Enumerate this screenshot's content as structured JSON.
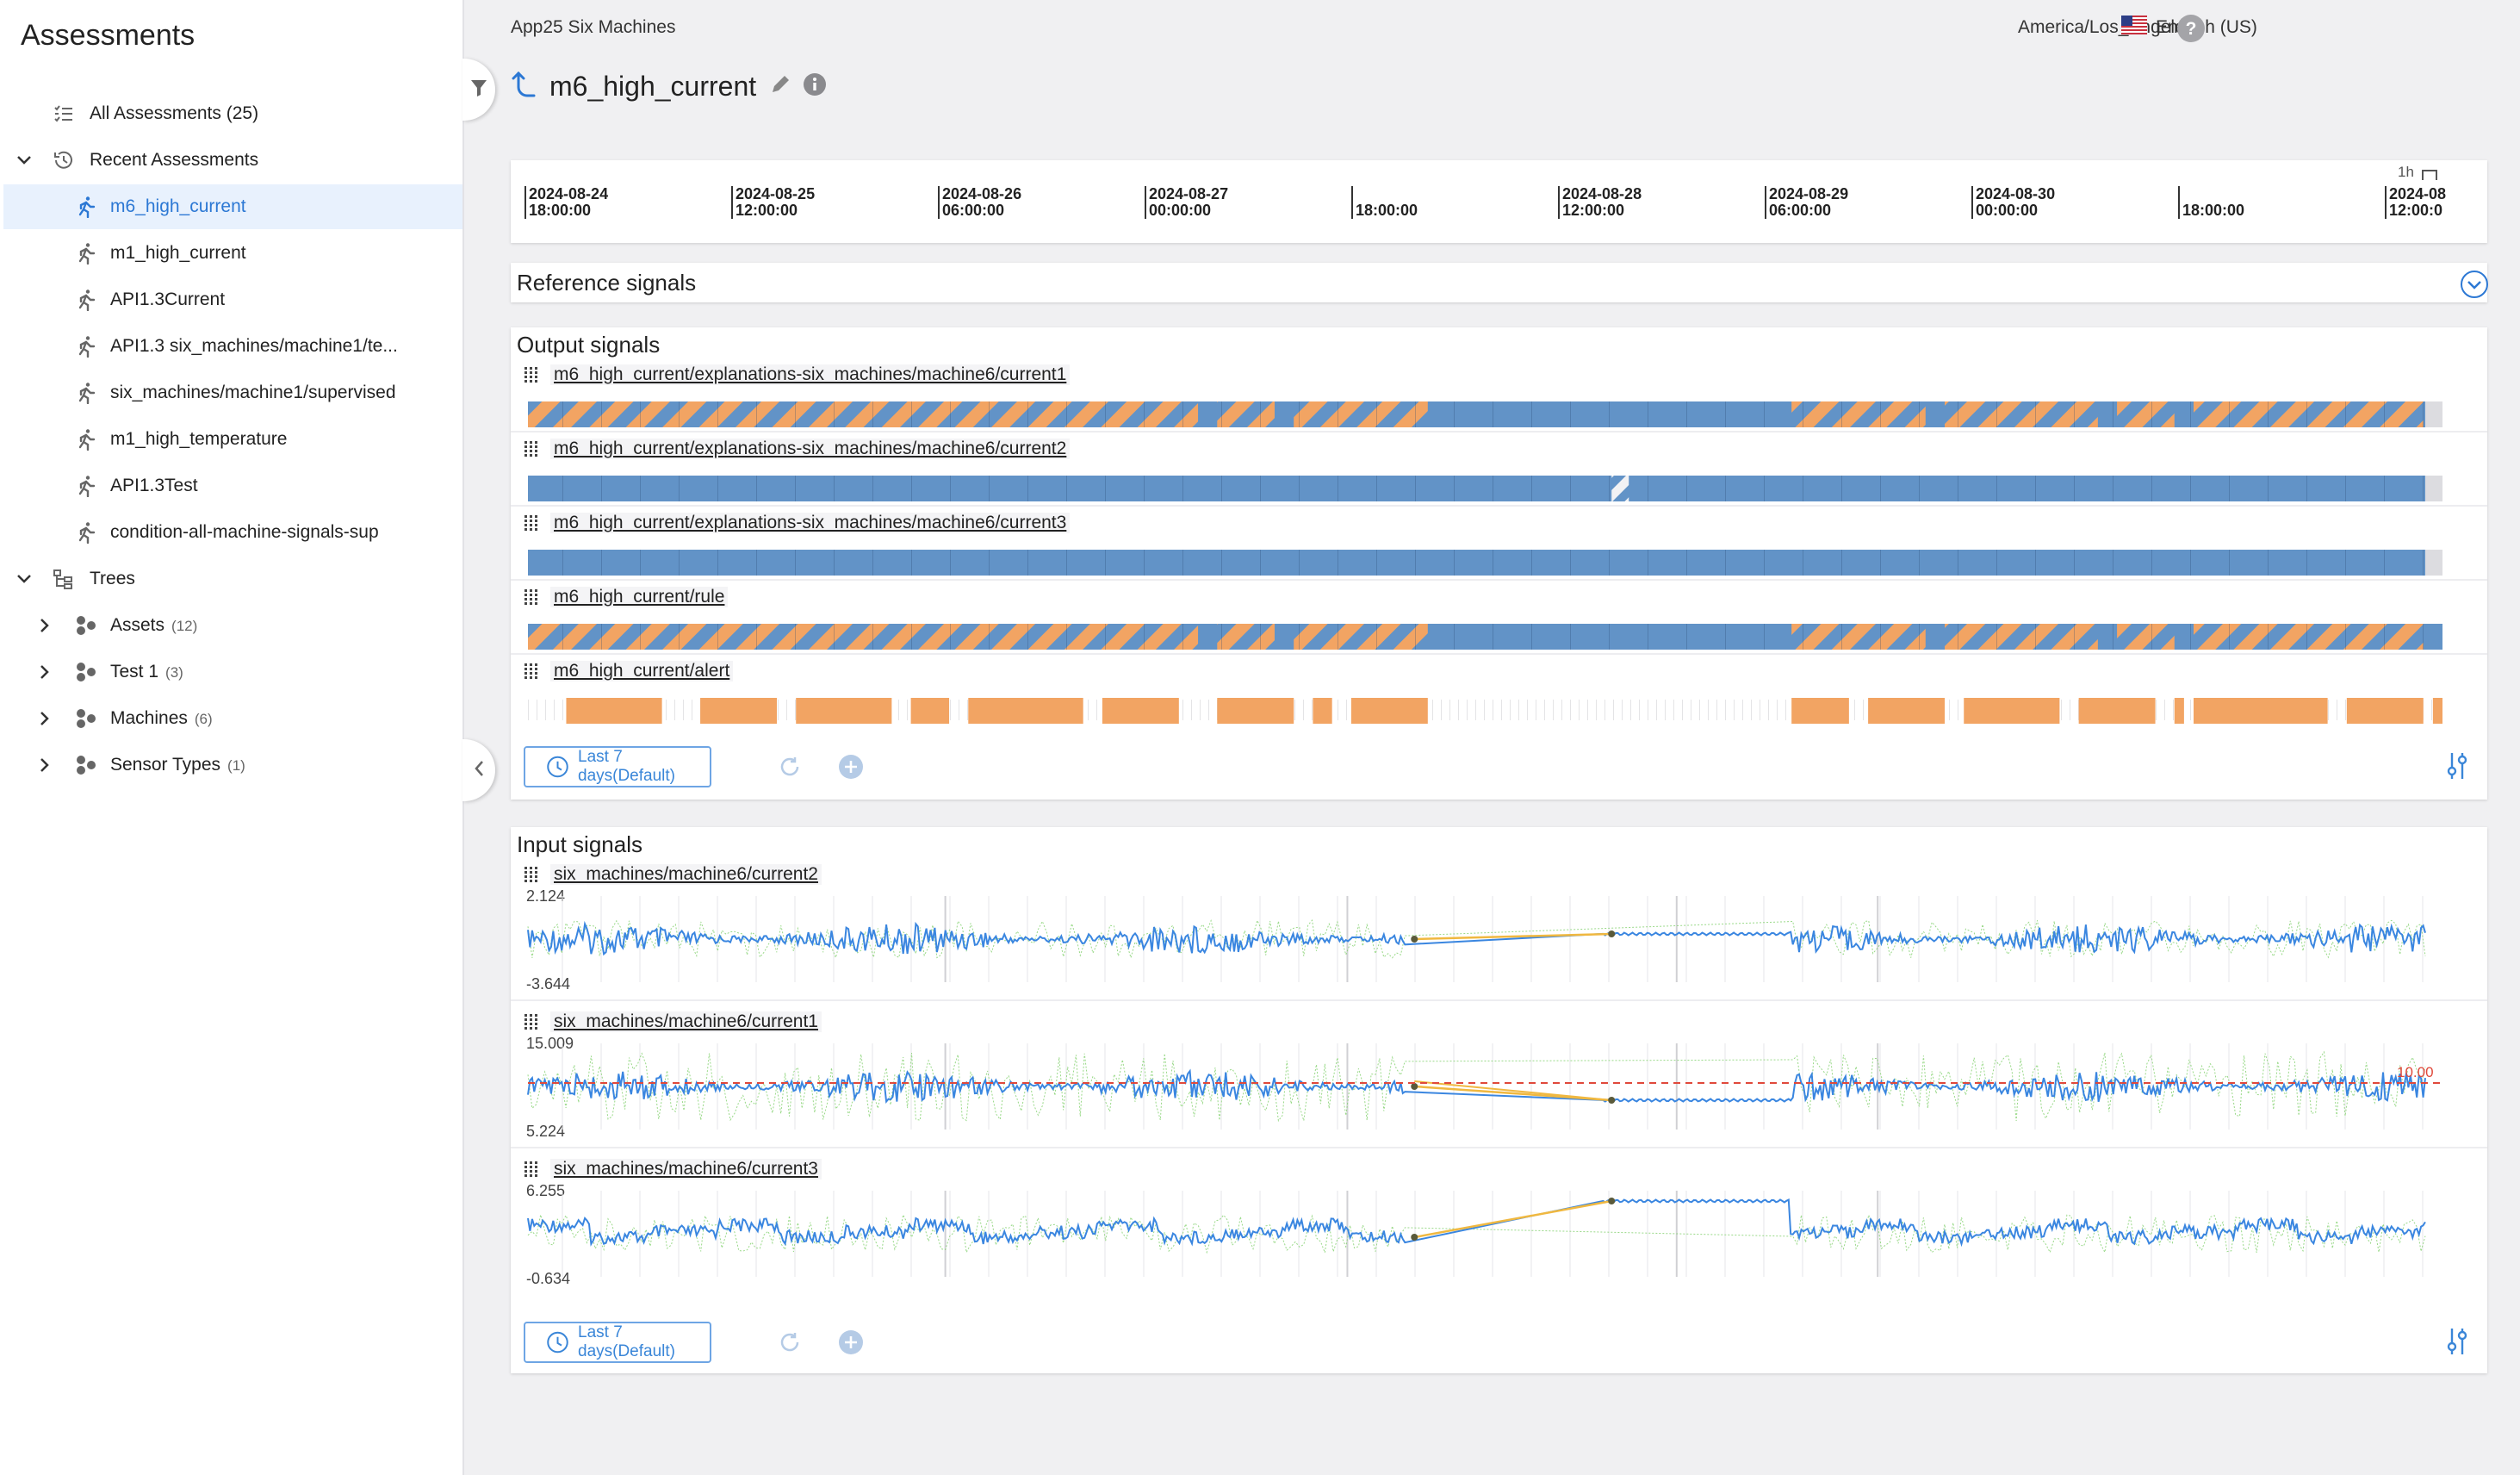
{
  "sidebar": {
    "title": "Assessments",
    "items": [
      {
        "label": "All Assessments (25)",
        "icon": "checklist-icon"
      },
      {
        "label": "Recent Assessments",
        "icon": "history-icon"
      },
      {
        "label": "m6_high_current",
        "icon": "runner-icon",
        "selected": true
      },
      {
        "label": "m1_high_current",
        "icon": "runner-icon"
      },
      {
        "label": "API1.3Current",
        "icon": "runner-icon"
      },
      {
        "label": "API1.3 six_machines/machine1/te...",
        "icon": "runner-icon"
      },
      {
        "label": "six_machines/machine1/supervised",
        "icon": "runner-icon"
      },
      {
        "label": "m1_high_temperature",
        "icon": "runner-icon"
      },
      {
        "label": "API1.3Test",
        "icon": "runner-icon"
      },
      {
        "label": "condition-all-machine-signals-sup",
        "icon": "runner-icon"
      },
      {
        "label": "Trees",
        "icon": "tree-icon"
      },
      {
        "label": "Assets",
        "count": "(12)",
        "icon": "cluster-icon"
      },
      {
        "label": "Test 1",
        "count": "(3)",
        "icon": "cluster-icon"
      },
      {
        "label": "Machines",
        "count": "(6)",
        "icon": "cluster-icon"
      },
      {
        "label": "Sensor Types",
        "count": "(1)",
        "icon": "cluster-icon"
      }
    ]
  },
  "topbar": {
    "app_name": "App25 Six Machines",
    "timezone": "America/Los_Angeles",
    "language": "English (US)"
  },
  "header": {
    "title": "m6_high_current"
  },
  "timeline": {
    "ticks": [
      "2024-08-24\n18:00:00",
      "2024-08-25\n12:00:00",
      "2024-08-26\n06:00:00",
      "2024-08-27\n00:00:00",
      "\n18:00:00",
      "2024-08-28\n12:00:00",
      "2024-08-29\n06:00:00",
      "2024-08-30\n00:00:00",
      "\n18:00:00",
      "2024-08\n12:00:0"
    ],
    "resolution": "1h"
  },
  "reference": {
    "title": "Reference signals"
  },
  "output": {
    "title": "Output signals",
    "signals": [
      "m6_high_current/explanations-six_machines/machine6/current1",
      "m6_high_current/explanations-six_machines/machine6/current2",
      "m6_high_current/explanations-six_machines/machine6/current3",
      "m6_high_current/rule",
      "m6_high_current/alert"
    ],
    "range_label": "Last 7 days(Default)"
  },
  "input": {
    "title": "Input signals",
    "range_label": "Last 7 days(Default)",
    "signals": [
      {
        "name": "six_machines/machine6/current2",
        "max": "2.124",
        "min": "-3.644"
      },
      {
        "name": "six_machines/machine6/current1",
        "max": "15.009",
        "min": "5.224",
        "threshold": "10.00"
      },
      {
        "name": "six_machines/machine6/current3",
        "max": "6.255",
        "min": "-0.634"
      }
    ]
  },
  "colors": {
    "accent": "#3a86d8",
    "normal_state": "#6293c7",
    "alert_state": "#f2a463",
    "signal_line": "#3a86e0",
    "band": "#7fd06a",
    "gap_line": "#f0b840",
    "threshold": "#e0493b"
  }
}
